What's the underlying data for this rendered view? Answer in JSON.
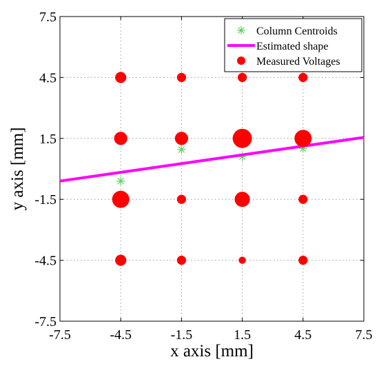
{
  "chart_data": {
    "type": "scatter",
    "xlabel": "x axis [mm]",
    "ylabel": "y axis [mm]",
    "xlim": [
      -7.5,
      7.5
    ],
    "ylim": [
      -7.5,
      7.5
    ],
    "xticks": [
      "-7.5",
      "-4.5",
      "-1.5",
      "1.5",
      "4.5",
      "7.5"
    ],
    "yticks": [
      "-7.5",
      "-4.5",
      "-1.5",
      "1.5",
      "4.5",
      "7.5"
    ],
    "xtick_values": [
      -7.5,
      -4.5,
      -1.5,
      1.5,
      4.5,
      7.5
    ],
    "ytick_values": [
      -7.5,
      -4.5,
      -1.5,
      1.5,
      4.5,
      7.5
    ],
    "grid": true,
    "legend_position": "top-right",
    "legend": [
      "Column Centroids",
      "Estimated shape",
      "Measured Voltages"
    ],
    "series": [
      {
        "name": "Column Centroids",
        "type": "scatter",
        "marker": "asterisk",
        "color": "#58d458",
        "points": [
          {
            "x": -4.5,
            "y": -0.6
          },
          {
            "x": -1.5,
            "y": 0.95
          },
          {
            "x": 1.5,
            "y": 0.6
          },
          {
            "x": 4.5,
            "y": 1.0
          }
        ]
      },
      {
        "name": "Estimated shape",
        "type": "line",
        "color": "#ff00ff",
        "points": [
          {
            "x": -7.5,
            "y": -0.6
          },
          {
            "x": 7.5,
            "y": 1.55
          }
        ]
      },
      {
        "name": "Measured Voltages",
        "type": "scatter",
        "marker": "circle",
        "color": "#ff0000",
        "points": [
          {
            "x": -4.5,
            "y": 4.5,
            "size": 2
          },
          {
            "x": -1.5,
            "y": 4.5,
            "size": 1
          },
          {
            "x": 1.5,
            "y": 4.5,
            "size": 1
          },
          {
            "x": 4.5,
            "y": 4.5,
            "size": 1
          },
          {
            "x": -4.5,
            "y": 1.5,
            "size": 3
          },
          {
            "x": -1.5,
            "y": 1.5,
            "size": 3
          },
          {
            "x": 1.5,
            "y": 1.5,
            "size": 6
          },
          {
            "x": 4.5,
            "y": 1.5,
            "size": 5
          },
          {
            "x": -4.5,
            "y": -1.5,
            "size": 5
          },
          {
            "x": -1.5,
            "y": -1.5,
            "size": 1
          },
          {
            "x": 1.5,
            "y": -1.5,
            "size": 4
          },
          {
            "x": 4.5,
            "y": -1.5,
            "size": 1
          },
          {
            "x": -4.5,
            "y": -4.5,
            "size": 2
          },
          {
            "x": -1.5,
            "y": -4.5,
            "size": 1
          },
          {
            "x": 1.5,
            "y": -4.5,
            "size": 0
          },
          {
            "x": 4.5,
            "y": -4.5,
            "size": 1
          }
        ]
      }
    ]
  }
}
